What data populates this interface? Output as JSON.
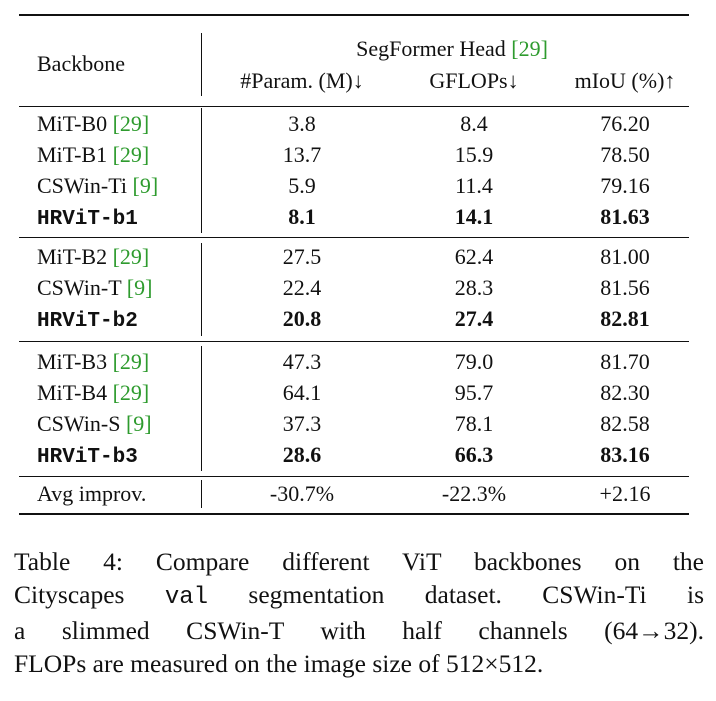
{
  "table": {
    "header": {
      "backbone": "Backbone",
      "group_title": "SegFormer Head",
      "group_cite": "29",
      "col_params": "#Param. (M)↓",
      "col_gflops": "GFLOPs↓",
      "col_miou": "mIoU (%)↑"
    },
    "groups": [
      {
        "rows": [
          {
            "name": "MiT-B0",
            "cite": "29",
            "params": "3.8",
            "gflops": "8.4",
            "miou": "76.20",
            "bold": false
          },
          {
            "name": "MiT-B1",
            "cite": "29",
            "params": "13.7",
            "gflops": "15.9",
            "miou": "78.50",
            "bold": false
          },
          {
            "name": "CSWin-Ti",
            "cite": "9",
            "params": "5.9",
            "gflops": "11.4",
            "miou": "79.16",
            "bold": false
          },
          {
            "name": "HRViT-b1",
            "cite": "",
            "params": "8.1",
            "gflops": "14.1",
            "miou": "81.63",
            "bold": true
          }
        ]
      },
      {
        "rows": [
          {
            "name": "MiT-B2",
            "cite": "29",
            "params": "27.5",
            "gflops": "62.4",
            "miou": "81.00",
            "bold": false
          },
          {
            "name": "CSWin-T",
            "cite": "9",
            "params": "22.4",
            "gflops": "28.3",
            "miou": "81.56",
            "bold": false
          },
          {
            "name": "HRViT-b2",
            "cite": "",
            "params": "20.8",
            "gflops": "27.4",
            "miou": "82.81",
            "bold": true
          }
        ]
      },
      {
        "rows": [
          {
            "name": "MiT-B3",
            "cite": "29",
            "params": "47.3",
            "gflops": "79.0",
            "miou": "81.70",
            "bold": false
          },
          {
            "name": "MiT-B4",
            "cite": "29",
            "params": "64.1",
            "gflops": "95.7",
            "miou": "82.30",
            "bold": false
          },
          {
            "name": "CSWin-S",
            "cite": "9",
            "params": "37.3",
            "gflops": "78.1",
            "miou": "82.58",
            "bold": false
          },
          {
            "name": "HRViT-b3",
            "cite": "",
            "params": "28.6",
            "gflops": "66.3",
            "miou": "83.16",
            "bold": true
          }
        ]
      }
    ],
    "avg": {
      "label": "Avg improv.",
      "params": "-30.7%",
      "gflops": "-22.3%",
      "miou": "+2.16"
    }
  },
  "caption": {
    "line1": "Table 4:  Compare different ViT backbones on the",
    "line2_a": "Cityscapes ",
    "line2_code": "val",
    "line2_b": " segmentation dataset.  CSWin-Ti is",
    "line3": "a slimmed CSWin-T with half channels (64→32).",
    "line4": "FLOPs are measured on the image size of 512×512."
  }
}
